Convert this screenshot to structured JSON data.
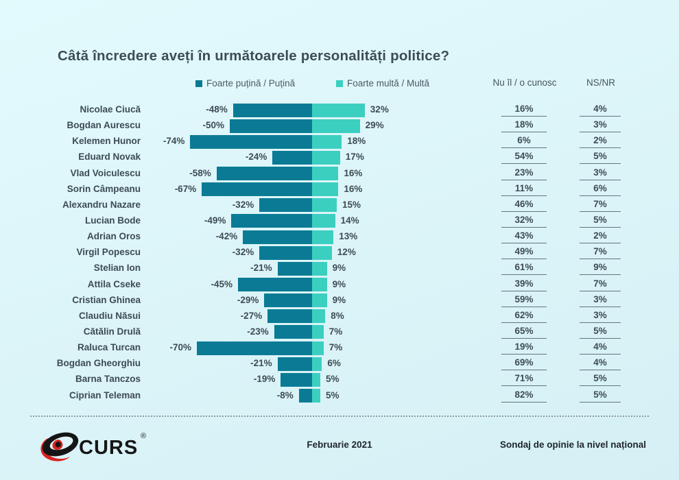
{
  "title": "Câtă încredere aveți în următoarele personalități politice?",
  "legend": [
    {
      "label": "Foarte puțină / Puțină",
      "color": "#0b7b95"
    },
    {
      "label": "Foarte multă / Multă",
      "color": "#3bcfc0"
    }
  ],
  "columns": {
    "unknown_header": "Nu îl / o cunosc",
    "nsnr_header": "NS/NR"
  },
  "footer": {
    "logo_text": "CURS",
    "registered_mark": "®",
    "date": "Februarie 2021",
    "note": "Sondaj de opinie la nivel național"
  },
  "chart_data": {
    "type": "bar",
    "variant": "diverging-horizontal",
    "title": "Câtă încredere aveți în următoarele personalități politice?",
    "unit": "%",
    "xlim": [
      -80,
      40
    ],
    "grid": false,
    "legend_position": "top",
    "categories": [
      "Nicolae Ciucă",
      "Bogdan Aurescu",
      "Kelemen Hunor",
      "Eduard Novak",
      "Vlad Voiculescu",
      "Sorin Câmpeanu",
      "Alexandru Nazare",
      "Lucian Bode",
      "Adrian Oros",
      "Virgil Popescu",
      "Stelian Ion",
      "Attila Cseke",
      "Cristian Ghinea",
      "Claudiu Năsui",
      "Cătălin Drulă",
      "Raluca Turcan",
      "Bogdan Gheorghiu",
      "Barna Tanczos",
      "Ciprian Teleman"
    ],
    "series": [
      {
        "name": "Foarte puțină / Puțină",
        "color": "#0b7b95",
        "values": [
          -48,
          -50,
          -74,
          -24,
          -58,
          -67,
          -32,
          -49,
          -42,
          -32,
          -21,
          -45,
          -29,
          -27,
          -23,
          -70,
          -21,
          -19,
          -8
        ]
      },
      {
        "name": "Foarte multă / Multă",
        "color": "#3bcfc0",
        "values": [
          32,
          29,
          18,
          17,
          16,
          16,
          15,
          14,
          13,
          12,
          9,
          9,
          9,
          8,
          7,
          7,
          6,
          5,
          5
        ]
      },
      {
        "name": "Nu îl / o cunosc",
        "values": [
          16,
          18,
          6,
          54,
          23,
          11,
          46,
          32,
          43,
          49,
          61,
          39,
          59,
          62,
          65,
          19,
          69,
          71,
          82
        ]
      },
      {
        "name": "NS/NR",
        "values": [
          4,
          3,
          2,
          5,
          3,
          6,
          7,
          5,
          2,
          7,
          9,
          7,
          3,
          3,
          5,
          4,
          4,
          5,
          5
        ]
      }
    ]
  }
}
